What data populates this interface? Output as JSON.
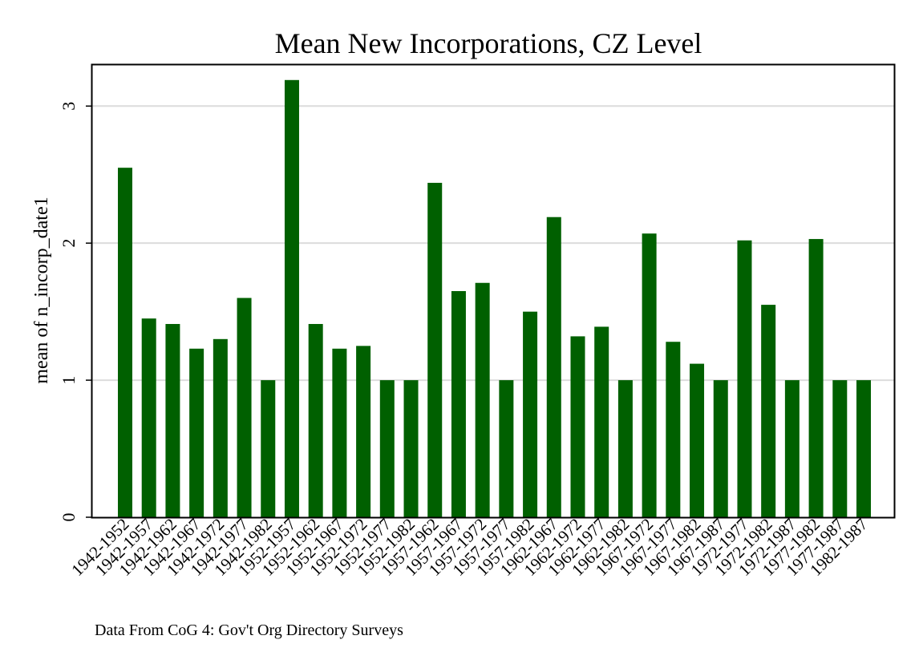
{
  "chart_data": {
    "type": "bar",
    "title": "Mean New Incorporations, CZ Level",
    "xlabel": "",
    "ylabel": "mean of n_incorp_date1",
    "note": "Data From CoG 4: Gov't Org Directory Surveys",
    "ylim": [
      0,
      3.3
    ],
    "yticks": [
      0,
      1,
      2,
      3
    ],
    "grid": true,
    "bar_color": "#006000",
    "categories": [
      "1942-1952",
      "1942-1957",
      "1942-1962",
      "1942-1967",
      "1942-1972",
      "1942-1977",
      "1942-1982",
      "1952-1957",
      "1952-1962",
      "1952-1967",
      "1952-1972",
      "1952-1977",
      "1952-1982",
      "1957-1962",
      "1957-1967",
      "1957-1972",
      "1957-1977",
      "1957-1982",
      "1962-1967",
      "1962-1972",
      "1962-1977",
      "1962-1982",
      "1967-1972",
      "1967-1977",
      "1967-1982",
      "1967-1987",
      "1972-1977",
      "1972-1982",
      "1972-1987",
      "1977-1982",
      "1977-1987",
      "1982-1987"
    ],
    "values": [
      2.55,
      1.45,
      1.41,
      1.23,
      1.3,
      1.6,
      1.0,
      3.19,
      1.41,
      1.23,
      1.25,
      1.0,
      1.0,
      2.44,
      1.65,
      1.71,
      1.0,
      1.5,
      2.19,
      1.32,
      1.39,
      1.0,
      2.07,
      1.28,
      1.12,
      1.0,
      2.02,
      1.55,
      1.0,
      2.03,
      1.0,
      1.0
    ]
  }
}
